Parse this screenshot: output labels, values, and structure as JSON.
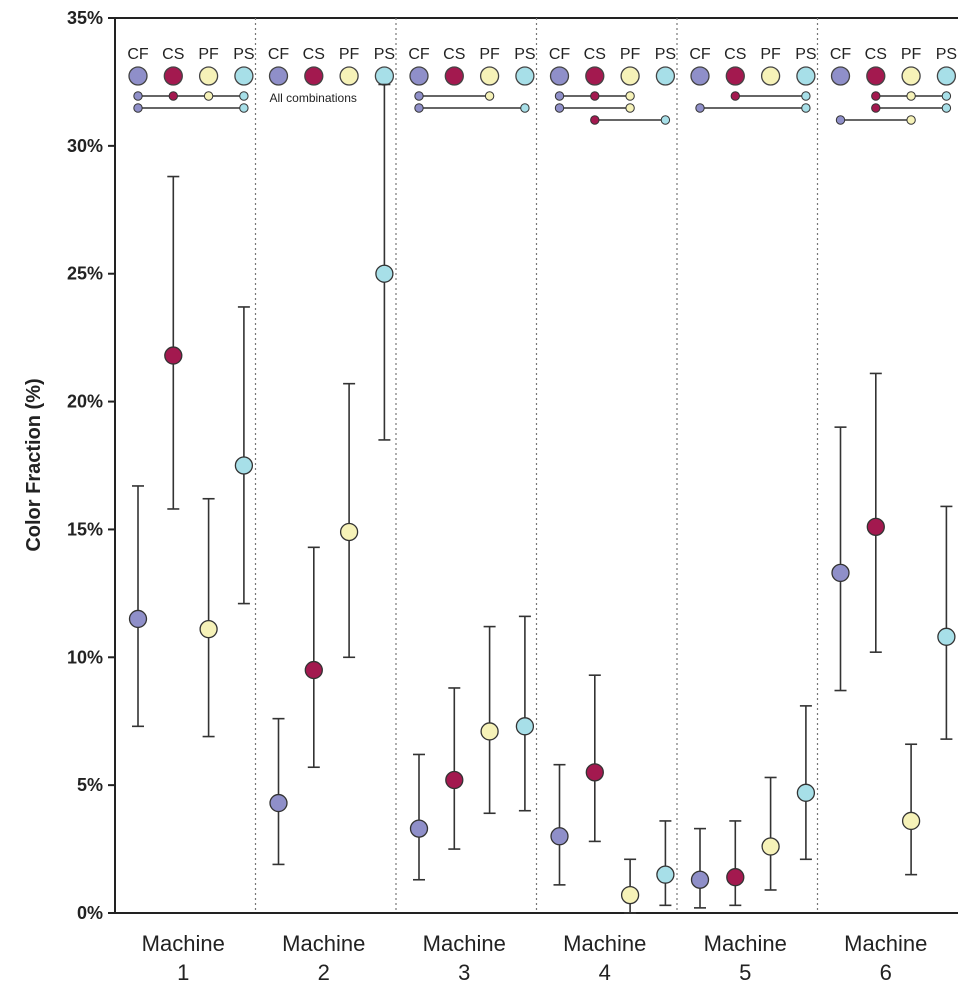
{
  "chart_data": {
    "type": "scatter",
    "subtype": "mean-with-error-bars",
    "ylabel": "Color Fraction (%)",
    "ylim": [
      0,
      35
    ],
    "yticks": [
      "0%",
      "5%",
      "10%",
      "15%",
      "20%",
      "25%",
      "30%",
      "35%"
    ],
    "ytick_values": [
      0,
      5,
      10,
      15,
      20,
      25,
      30,
      35
    ],
    "grid": false,
    "groups": [
      {
        "line1": "Machine",
        "line2": "1"
      },
      {
        "line1": "Machine",
        "line2": "2"
      },
      {
        "line1": "Machine",
        "line2": "3"
      },
      {
        "line1": "Machine",
        "line2": "4"
      },
      {
        "line1": "Machine",
        "line2": "5"
      },
      {
        "line1": "Machine",
        "line2": "6"
      }
    ],
    "series": [
      {
        "name": "CF",
        "color": "#8f8fc9",
        "values": [
          11.5,
          4.3,
          3.3,
          3.0,
          1.3,
          13.3
        ],
        "lower": [
          7.3,
          1.9,
          1.3,
          1.1,
          0.2,
          8.7
        ],
        "upper": [
          16.7,
          7.6,
          6.2,
          5.8,
          3.3,
          19.0
        ]
      },
      {
        "name": "CS",
        "color": "#a3194f",
        "values": [
          21.8,
          9.5,
          5.2,
          5.5,
          1.4,
          15.1
        ],
        "lower": [
          15.8,
          5.7,
          2.5,
          2.8,
          0.3,
          10.2
        ],
        "upper": [
          28.8,
          14.3,
          8.8,
          9.3,
          3.6,
          21.1
        ]
      },
      {
        "name": "PF",
        "color": "#f6f2b8",
        "values": [
          11.1,
          14.9,
          7.1,
          0.7,
          2.6,
          3.6
        ],
        "lower": [
          6.9,
          10.0,
          3.9,
          0.0,
          0.9,
          1.5
        ],
        "upper": [
          16.2,
          20.7,
          11.2,
          2.1,
          5.3,
          6.6
        ]
      },
      {
        "name": "PS",
        "color": "#a7dfe8",
        "values": [
          17.5,
          25.0,
          7.3,
          1.5,
          4.7,
          10.8
        ],
        "lower": [
          12.1,
          18.5,
          4.0,
          0.3,
          2.1,
          6.8
        ],
        "upper": [
          23.7,
          32.4,
          11.6,
          3.6,
          8.1,
          15.9
        ]
      }
    ],
    "significance": [
      {
        "links": [
          [
            0,
            1,
            2,
            3
          ],
          [
            0,
            3
          ]
        ],
        "note": ""
      },
      {
        "links": [],
        "note": "All combinations"
      },
      {
        "links": [
          [
            0,
            2
          ],
          [
            0,
            3
          ]
        ],
        "note": ""
      },
      {
        "links": [
          [
            0,
            1,
            2
          ],
          [
            0,
            2
          ],
          [
            1,
            3
          ]
        ],
        "note": ""
      },
      {
        "links": [
          [
            1,
            3
          ],
          [
            0,
            3
          ]
        ],
        "note": ""
      },
      {
        "links": [
          [
            1,
            2,
            3
          ],
          [
            1,
            3
          ],
          [
            0,
            2
          ]
        ],
        "note": ""
      }
    ]
  }
}
